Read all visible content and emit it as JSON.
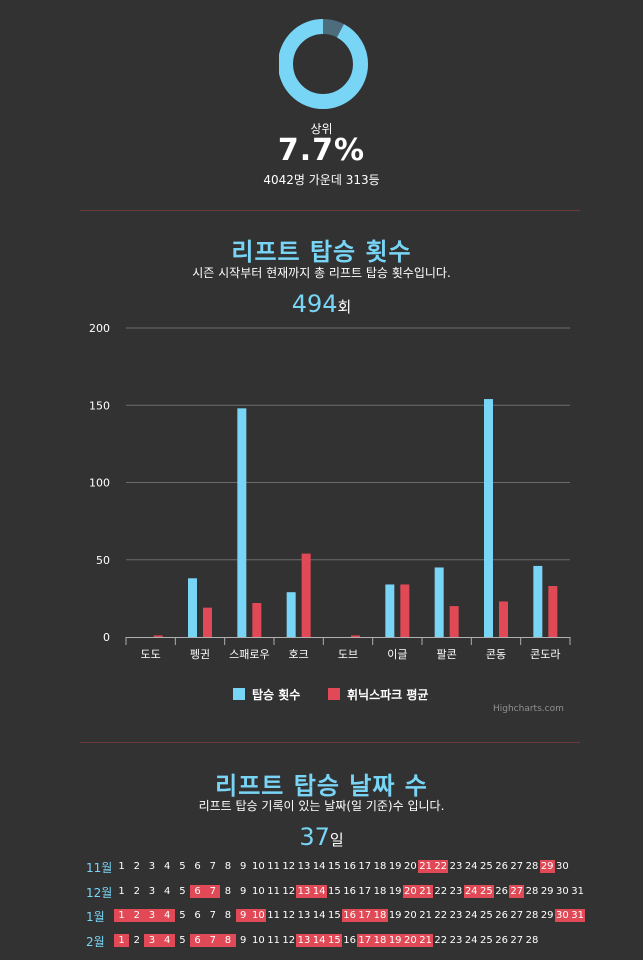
{
  "rank": {
    "label": "상위",
    "percent_text": "7.7%",
    "percent": 7.7,
    "detail": "4042명 가운데 313등"
  },
  "colors": {
    "accent": "#79d5f6",
    "red": "#e04955",
    "background": "#323232",
    "ring_remainder": "#4d6d7d"
  },
  "rift": {
    "title": "리프트 탑승 횟수",
    "subtitle": "시즌 시작부터 현재까지 총 리프트 탑승 횟수입니다.",
    "count": "494",
    "unit": "회",
    "credit": "Highcharts.com"
  },
  "chart_data": {
    "type": "bar",
    "categories": [
      "도도",
      "펭귄",
      "스패로우",
      "호크",
      "도브",
      "이글",
      "팔콘",
      "콘동",
      "콘도라"
    ],
    "series": [
      {
        "name": "탑승 횟수",
        "color": "#79d5f6",
        "values": [
          0,
          38,
          148,
          29,
          0,
          34,
          45,
          154,
          46
        ]
      },
      {
        "name": "휘닉스파크 평균",
        "color": "#e04955",
        "values": [
          1,
          19,
          22,
          54,
          1,
          34,
          20,
          23,
          33
        ]
      }
    ],
    "ylim": [
      0,
      200
    ],
    "yticks": [
      0,
      50,
      100,
      150,
      200
    ],
    "grid": true,
    "legend": "bottom"
  },
  "days": {
    "title": "리프트 탑승 날짜 수",
    "subtitle": "리프트 탑승 기록이 있는 날짜(일 기준)수 입니다.",
    "count": "37",
    "unit": "일",
    "months": [
      {
        "label": "11월",
        "days": 30,
        "active": [
          21,
          22,
          29
        ]
      },
      {
        "label": "12월",
        "days": 31,
        "active": [
          6,
          7,
          13,
          14,
          20,
          21,
          24,
          25,
          27
        ]
      },
      {
        "label": "1월",
        "days": 31,
        "active": [
          1,
          2,
          3,
          4,
          9,
          10,
          16,
          17,
          18,
          30,
          31
        ]
      },
      {
        "label": "2월",
        "days": 28,
        "active": [
          1,
          3,
          4,
          6,
          7,
          8,
          13,
          14,
          15,
          17,
          18,
          19,
          20,
          21
        ]
      }
    ]
  }
}
